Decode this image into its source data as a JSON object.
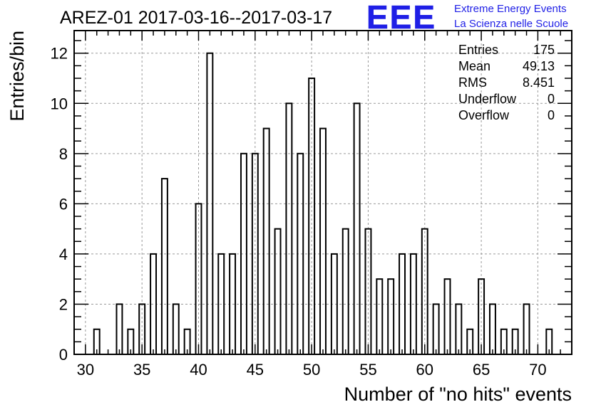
{
  "header": {
    "title": "AREZ-01 2017-03-16--2017-03-17",
    "logo_text": "EEE",
    "logo_line1": "Extreme Energy Events",
    "logo_line2": "La Scienza nelle Scuole",
    "logo_color": "#1f1fe6"
  },
  "stats": {
    "rows": [
      {
        "label": "Entries",
        "value": "175"
      },
      {
        "label": "Mean",
        "value": "49.13"
      },
      {
        "label": "RMS",
        "value": "8.451"
      },
      {
        "label": "Underflow",
        "value": "0"
      },
      {
        "label": "Overflow",
        "value": "0"
      }
    ]
  },
  "chart_data": {
    "type": "bar",
    "title": "AREZ-01 2017-03-16--2017-03-17",
    "xlabel": "Number of \"no hits\" events",
    "ylabel": "Entries/bin",
    "xlim": [
      29,
      73
    ],
    "ylim": [
      0,
      12.9
    ],
    "x_ticks": [
      30,
      35,
      40,
      45,
      50,
      55,
      60,
      65,
      70
    ],
    "y_ticks": [
      0,
      2,
      4,
      6,
      8,
      10,
      12
    ],
    "grid": true,
    "bins": [
      {
        "x": 31,
        "value": 1
      },
      {
        "x": 33,
        "value": 2
      },
      {
        "x": 34,
        "value": 1
      },
      {
        "x": 35,
        "value": 2
      },
      {
        "x": 36,
        "value": 4
      },
      {
        "x": 37,
        "value": 7
      },
      {
        "x": 38,
        "value": 2
      },
      {
        "x": 39,
        "value": 1
      },
      {
        "x": 40,
        "value": 6
      },
      {
        "x": 41,
        "value": 12
      },
      {
        "x": 42,
        "value": 4
      },
      {
        "x": 43,
        "value": 4
      },
      {
        "x": 44,
        "value": 8
      },
      {
        "x": 45,
        "value": 8
      },
      {
        "x": 46,
        "value": 9
      },
      {
        "x": 47,
        "value": 5
      },
      {
        "x": 48,
        "value": 10
      },
      {
        "x": 49,
        "value": 8
      },
      {
        "x": 50,
        "value": 11
      },
      {
        "x": 51,
        "value": 9
      },
      {
        "x": 52,
        "value": 4
      },
      {
        "x": 53,
        "value": 5
      },
      {
        "x": 54,
        "value": 10
      },
      {
        "x": 55,
        "value": 5
      },
      {
        "x": 56,
        "value": 3
      },
      {
        "x": 57,
        "value": 3
      },
      {
        "x": 58,
        "value": 4
      },
      {
        "x": 59,
        "value": 4
      },
      {
        "x": 60,
        "value": 5
      },
      {
        "x": 61,
        "value": 2
      },
      {
        "x": 62,
        "value": 3
      },
      {
        "x": 63,
        "value": 2
      },
      {
        "x": 64,
        "value": 1
      },
      {
        "x": 65,
        "value": 3
      },
      {
        "x": 66,
        "value": 2
      },
      {
        "x": 67,
        "value": 1
      },
      {
        "x": 68,
        "value": 1
      },
      {
        "x": 69,
        "value": 2
      },
      {
        "x": 71,
        "value": 1
      }
    ]
  }
}
